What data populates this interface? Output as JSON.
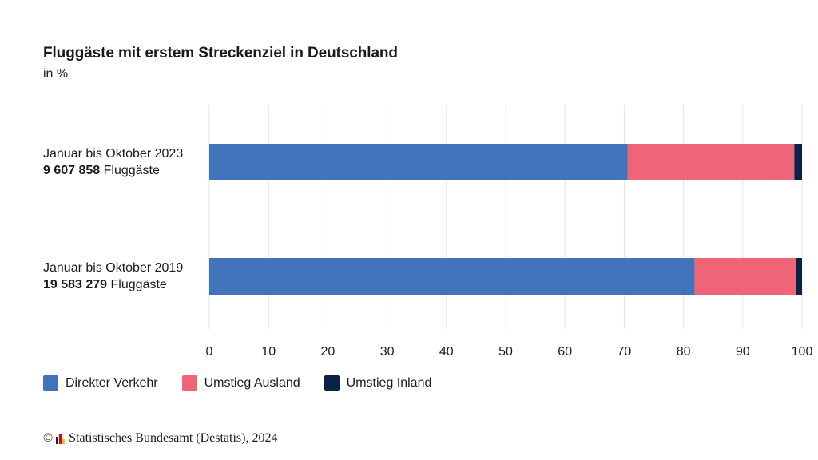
{
  "colors": {
    "direkt": "#4174ba",
    "umstieg_ausland": "#f06478",
    "umstieg_inland": "#0b2145",
    "grid": "#e3e3e3"
  },
  "labels": {
    "row1_period": "Januar bis Oktober 2023",
    "row1_count": "9 607 858",
    "row1_unit": " Fluggäste",
    "row2_period": "Januar bis Oktober 2019",
    "row2_count": "19 583 279",
    "row2_unit": " Fluggäste"
  },
  "footer": {
    "copyright_symbol": "©",
    "source": "Statistisches Bundesamt (Destatis), 2024"
  },
  "chart_data": {
    "type": "bar",
    "orientation": "horizontal",
    "stacked": true,
    "title": "Fluggäste mit erstem Streckenziel in Deutschland",
    "subtitle": "in %",
    "categories": [
      "Januar bis Oktober 2023 9 607 858 Fluggäste",
      "Januar bis Oktober 2019 19 583 279 Fluggäste"
    ],
    "series": [
      {
        "name": "Direkter Verkehr",
        "values": [
          70.6,
          81.9
        ]
      },
      {
        "name": "Umstieg Ausland",
        "values": [
          28.1,
          17.1
        ]
      },
      {
        "name": "Umstieg Inland",
        "values": [
          1.3,
          1.0
        ]
      }
    ],
    "xlim": [
      0,
      100
    ],
    "xticks": [
      "0",
      "10",
      "20",
      "30",
      "40",
      "50",
      "60",
      "70",
      "80",
      "90",
      "100"
    ],
    "grid": true,
    "legend": "bottom-left"
  }
}
